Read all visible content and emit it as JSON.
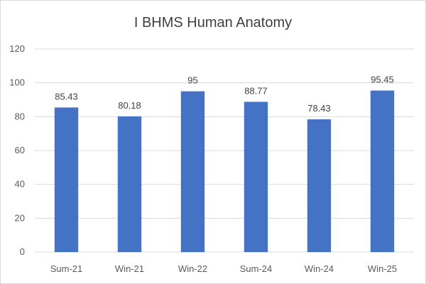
{
  "chart_data": {
    "type": "bar",
    "title": "I BHMS Human Anatomy",
    "categories": [
      "Sum-21",
      "Win-21",
      "Win-22",
      "Sum-24",
      "Win-24",
      "Win-25"
    ],
    "values": [
      85.43,
      80.18,
      95,
      88.77,
      78.43,
      95.45
    ],
    "data_labels": [
      "85.43",
      "80.18",
      "95",
      "88.77",
      "78.43",
      "95.45"
    ],
    "y_ticks": [
      0,
      20,
      40,
      60,
      80,
      100,
      120
    ],
    "ylim": [
      0,
      120
    ],
    "xlabel": "",
    "ylabel": "",
    "grid": true,
    "legend": "none",
    "bar_color": "#4472c4",
    "grid_color": "#d9d9d9"
  }
}
